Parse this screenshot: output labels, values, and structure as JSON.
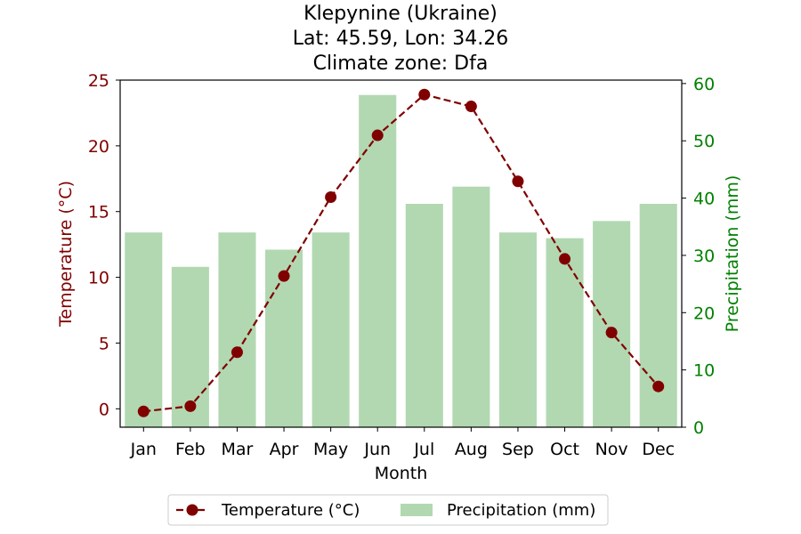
{
  "chart_data": {
    "type": "bar+line",
    "title_lines": [
      "Klepynine (Ukraine)",
      "Lat: 45.59, Lon: 34.26",
      "Climate zone: Dfa"
    ],
    "xlabel": "Month",
    "categories": [
      "Jan",
      "Feb",
      "Mar",
      "Apr",
      "May",
      "Jun",
      "Jul",
      "Aug",
      "Sep",
      "Oct",
      "Nov",
      "Dec"
    ],
    "temperature": {
      "name": "Temperature (°C)",
      "axis_label": "Temperature (°C)",
      "values": [
        -0.2,
        0.2,
        4.3,
        10.1,
        16.1,
        20.8,
        23.9,
        23.0,
        17.3,
        11.4,
        5.8,
        1.7
      ],
      "ylim": [
        -1.4,
        25.0
      ],
      "ticks": [
        0,
        5,
        10,
        15,
        20,
        25
      ],
      "color": "#800000"
    },
    "precipitation": {
      "name": "Precipitation (mm)",
      "axis_label": "Precipitation (mm)",
      "values": [
        34,
        28,
        34,
        31,
        34,
        58,
        39,
        42,
        34,
        33,
        36,
        39
      ],
      "ylim": [
        0,
        60.6
      ],
      "ticks": [
        0,
        10,
        20,
        30,
        40,
        50,
        60
      ],
      "color": "#008000",
      "bar_color": "#b2d8b2"
    },
    "legend": {
      "placement": "bottom-center"
    },
    "grid": false
  }
}
